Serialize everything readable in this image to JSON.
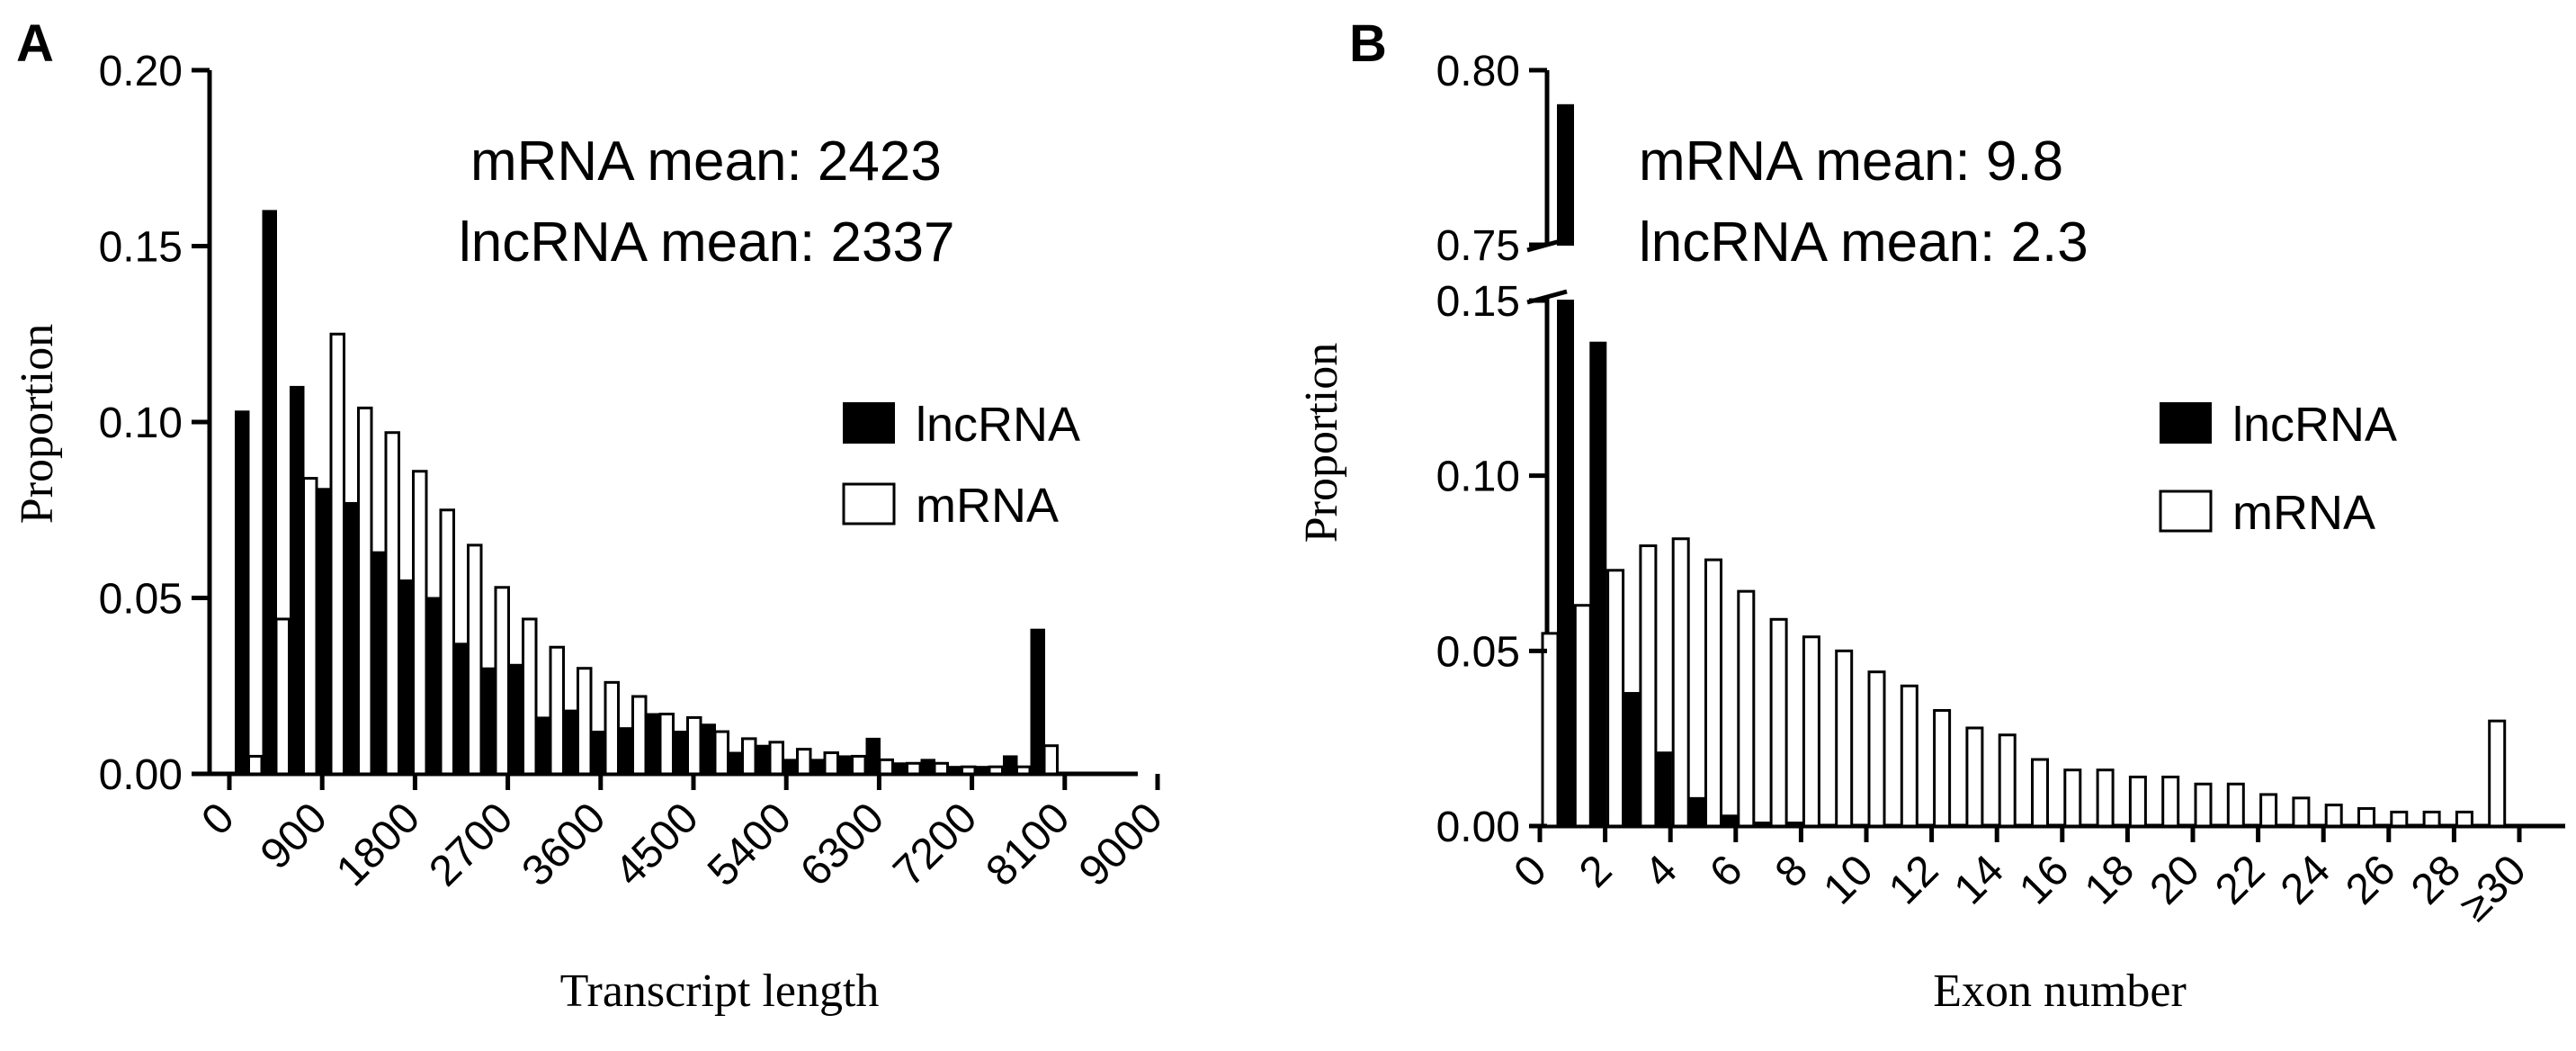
{
  "chart_data": [
    {
      "type": "bar",
      "panel": "A",
      "title": "",
      "xlabel": "Transcript length",
      "ylabel": "Proportion",
      "ylim": [
        0,
        0.2
      ],
      "yticks": [
        "0.00",
        "0.05",
        "0.10",
        "0.15",
        "0.20"
      ],
      "xticks": [
        "0",
        "900",
        "1800",
        "2700",
        "3600",
        "4500",
        "5400",
        "6300",
        "7200",
        "8100",
        "9000"
      ],
      "annotations": [
        "mRNA mean: 2423",
        "lncRNA mean: 2337"
      ],
      "legend": [
        "lncRNA",
        "mRNA"
      ],
      "series": [
        {
          "name": "lncRNA",
          "values": [
            0.103,
            0.16,
            0.11,
            0.081,
            0.077,
            0.063,
            0.055,
            0.05,
            0.037,
            0.03,
            0.031,
            0.016,
            0.018,
            0.012,
            0.013,
            0.017,
            0.012,
            0.014,
            0.006,
            0.008,
            0.004,
            0.004,
            0.005,
            0.01,
            0.003,
            0.004,
            0.002,
            0.002,
            0.005,
            0.041
          ]
        },
        {
          "name": "mRNA",
          "values": [
            0.005,
            0.044,
            0.084,
            0.125,
            0.104,
            0.097,
            0.086,
            0.075,
            0.065,
            0.053,
            0.044,
            0.036,
            0.03,
            0.026,
            0.022,
            0.017,
            0.016,
            0.012,
            0.01,
            0.009,
            0.007,
            0.006,
            0.005,
            0.004,
            0.003,
            0.003,
            0.002,
            0.002,
            0.002,
            0.008
          ]
        }
      ]
    },
    {
      "type": "bar",
      "panel": "B",
      "title": "",
      "xlabel": "Exon number",
      "ylabel": "Proportion",
      "ylim_lower": [
        0,
        0.15
      ],
      "ylim_upper": [
        0.75,
        0.8
      ],
      "yticks_lower": [
        "0.00",
        "0.05",
        "0.10",
        "0.15"
      ],
      "yticks_upper": [
        "0.75",
        "0.80"
      ],
      "xticks": [
        "0",
        "2",
        "4",
        "6",
        "8",
        "10",
        "12",
        "14",
        "16",
        "18",
        "20",
        "22",
        "24",
        "26",
        "28",
        "≥30"
      ],
      "annotations": [
        "mRNA mean: 9.8",
        "lncRNA mean: 2.3"
      ],
      "legend": [
        "lncRNA",
        "mRNA"
      ],
      "series": [
        {
          "name": "lncRNA",
          "values": [
            0.79,
            0.138,
            0.038,
            0.021,
            0.008,
            0.003,
            0.001,
            0.001,
            0,
            0,
            0,
            0,
            0,
            0,
            0,
            0,
            0,
            0,
            0,
            0,
            0,
            0,
            0,
            0,
            0,
            0,
            0,
            0,
            0,
            0
          ]
        },
        {
          "name": "mRNA",
          "values": [
            0.055,
            0.063,
            0.073,
            0.08,
            0.082,
            0.076,
            0.067,
            0.059,
            0.054,
            0.05,
            0.044,
            0.04,
            0.033,
            0.028,
            0.026,
            0.019,
            0.016,
            0.016,
            0.014,
            0.014,
            0.012,
            0.012,
            0.009,
            0.008,
            0.006,
            0.005,
            0.004,
            0.004,
            0.004,
            0.03
          ]
        }
      ]
    }
  ]
}
